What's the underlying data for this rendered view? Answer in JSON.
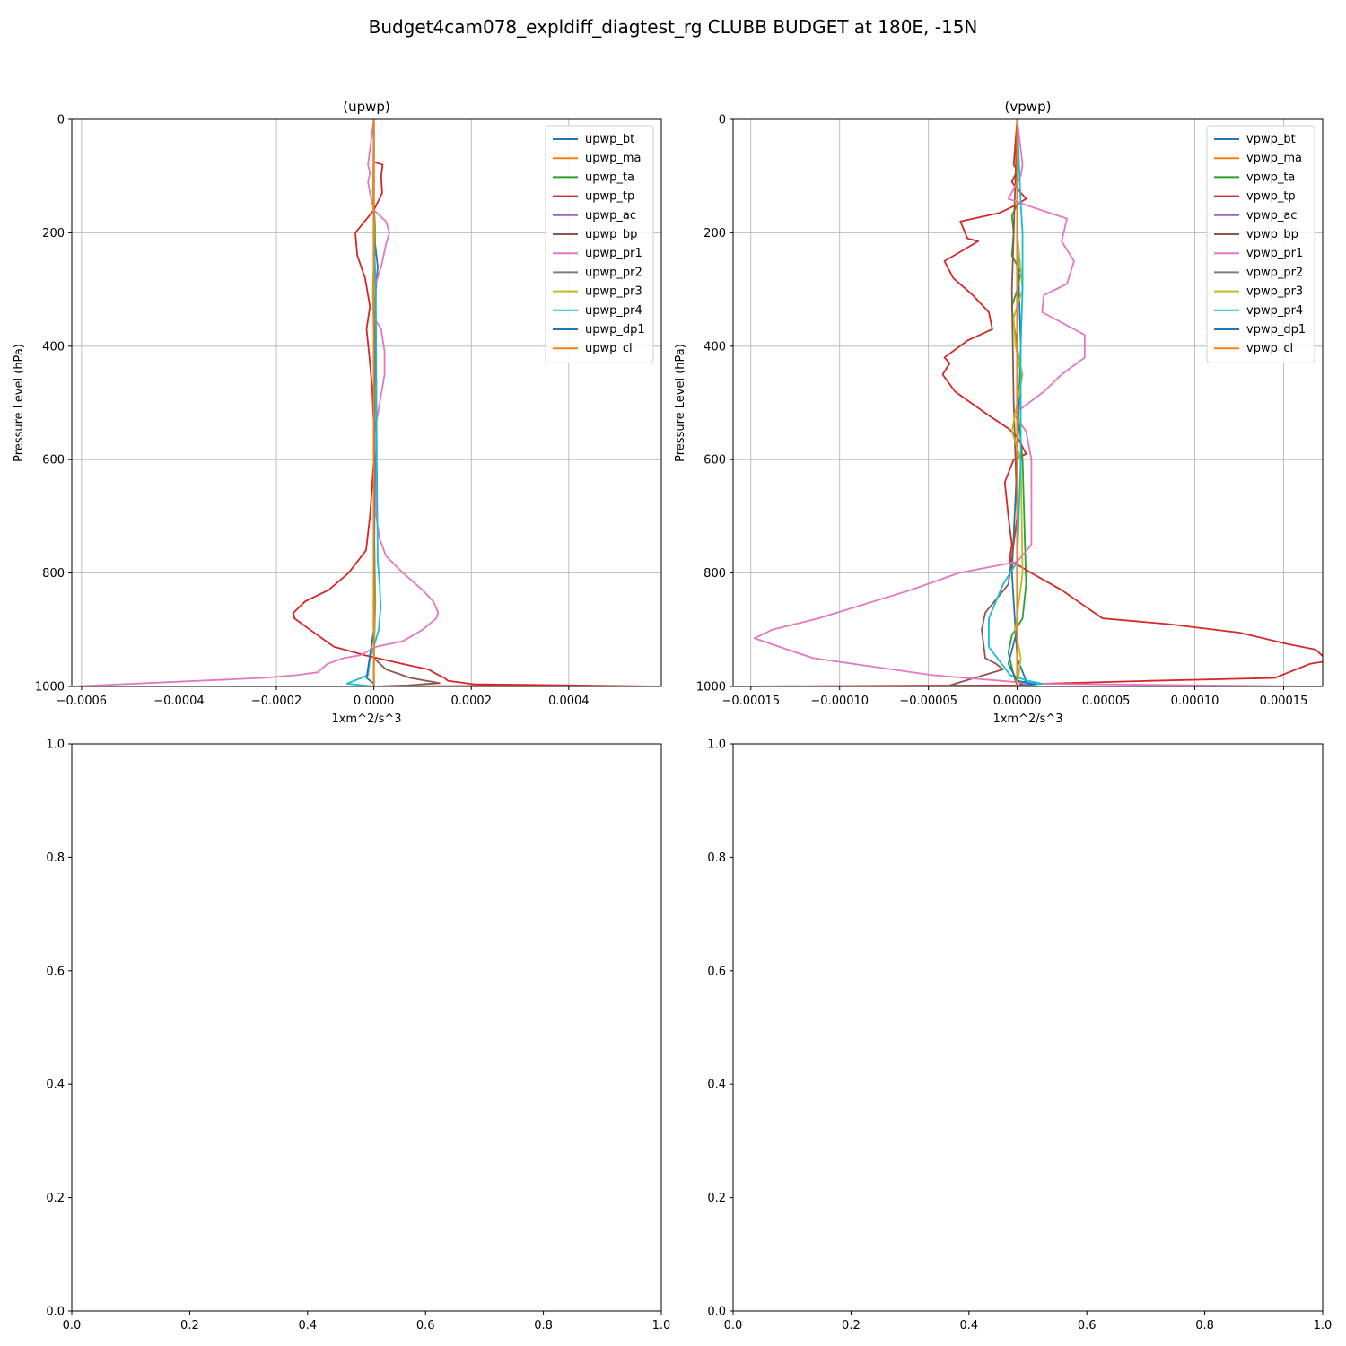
{
  "figure": {
    "title": "Budget4cam078_expldiff_diagtest_rg CLUBB BUDGET at 180E, -15N"
  },
  "chart_data": [
    {
      "type": "line",
      "title": "(upwp)",
      "xlabel": "1xm^2/s^3",
      "ylabel": "Pressure Level (hPa)",
      "xlim": [
        -0.00062,
        0.00059
      ],
      "ylim": [
        1000,
        0
      ],
      "y_inverted": true,
      "grid": true,
      "legend_position": "top-right",
      "xticks": [
        -0.0006,
        -0.0004,
        -0.0002,
        0.0,
        0.0002,
        0.0004
      ],
      "xtick_labels": [
        "−0.0006",
        "−0.0004",
        "−0.0002",
        "0.0000",
        "0.0002",
        "0.0004"
      ],
      "yticks": [
        0,
        200,
        400,
        600,
        800,
        1000
      ],
      "ytick_labels": [
        "0",
        "200",
        "400",
        "600",
        "800",
        "1000"
      ],
      "series": [
        {
          "name": "upwp_bt",
          "color": "#1f77b4",
          "x": [
            0,
            0,
            0,
            8e-06,
            4e-06,
            0,
            0,
            0,
            0,
            0
          ],
          "y": [
            0,
            150,
            200,
            260,
            300,
            600,
            800,
            930,
            980,
            1000
          ]
        },
        {
          "name": "upwp_ma",
          "color": "#ff7f0e",
          "x": [
            0,
            0,
            0,
            0,
            0
          ],
          "y": [
            0,
            300,
            600,
            900,
            1000
          ]
        },
        {
          "name": "upwp_ta",
          "color": "#2ca02c",
          "x": [
            0,
            0,
            3e-06,
            0,
            2e-06,
            0,
            3e-06,
            0,
            0
          ],
          "y": [
            0,
            150,
            200,
            300,
            500,
            700,
            850,
            950,
            1000
          ]
        },
        {
          "name": "upwp_tp",
          "color": "#d62728",
          "x": [
            0,
            0,
            1.8e-05,
            1.5e-05,
            1.7e-05,
            0,
            -3.8e-05,
            -3.4e-05,
            -1.8e-05,
            -8e-06,
            -1.5e-05,
            -9e-06,
            -3e-06,
            0,
            0,
            -3e-06,
            -8e-06,
            -1.6e-05,
            -5.2e-05,
            -9.3e-05,
            -0.000141,
            -0.000165,
            -0.000163,
            -0.000131,
            -8.2e-05,
            -1.8e-05,
            5.8e-05,
            0.000112,
            0.000133,
            0.000145,
            0.000152,
            0.000205,
            0.00059,
            0.0002,
            0
          ],
          "y": [
            0,
            75,
            80,
            100,
            130,
            160,
            200,
            240,
            280,
            330,
            370,
            420,
            480,
            540,
            600,
            640,
            700,
            760,
            800,
            830,
            850,
            870,
            880,
            900,
            930,
            945,
            960,
            970,
            980,
            985,
            990,
            996,
            1000,
            999,
            1000
          ]
        },
        {
          "name": "upwp_ac",
          "color": "#9467bd",
          "x": [
            0,
            0,
            0,
            0,
            0
          ],
          "y": [
            0,
            300,
            600,
            900,
            1000
          ]
        },
        {
          "name": "upwp_bp",
          "color": "#8c564b",
          "x": [
            0,
            0,
            2e-06,
            0,
            0,
            2.5e-05,
            7.5e-05,
            0.000135,
            7e-05,
            0
          ],
          "y": [
            0,
            300,
            500,
            700,
            950,
            970,
            985,
            994,
            998,
            1000
          ]
        },
        {
          "name": "upwp_pr1",
          "color": "#e377c2",
          "x": [
            0,
            -1.2e-05,
            -8e-06,
            -1.2e-05,
            -8e-06,
            0,
            2.5e-05,
            3.2e-05,
            2.5e-05,
            1.5e-05,
            0,
            0,
            1.5e-05,
            2.2e-05,
            2.2e-05,
            1.2e-05,
            0,
            3e-06,
            5e-06,
            5e-06,
            1.2e-05,
            2.5e-05,
            6e-05,
            0.0001,
            0.000122,
            0.000132,
            0.000128,
            0.0001,
            6e-05,
            5e-06,
            -2.8e-05,
            -6.2e-05,
            -9.5e-05,
            -0.000115,
            -0.000158,
            -0.000228,
            -0.00062
          ],
          "y": [
            0,
            80,
            95,
            110,
            130,
            160,
            180,
            200,
            220,
            260,
            300,
            350,
            370,
            410,
            450,
            500,
            560,
            600,
            650,
            700,
            740,
            770,
            800,
            830,
            850,
            870,
            880,
            900,
            920,
            930,
            945,
            950,
            960,
            975,
            980,
            985,
            1000
          ]
        },
        {
          "name": "upwp_pr2",
          "color": "#7f7f7f",
          "x": [
            0,
            0,
            0,
            0,
            0
          ],
          "y": [
            0,
            300,
            600,
            900,
            1000
          ]
        },
        {
          "name": "upwp_pr3",
          "color": "#bcbd22",
          "x": [
            0,
            -2e-06,
            2e-06,
            -2e-06,
            2e-06,
            0,
            2e-06,
            0,
            0
          ],
          "y": [
            0,
            150,
            200,
            300,
            500,
            700,
            850,
            950,
            1000
          ]
        },
        {
          "name": "upwp_pr4",
          "color": "#17becf",
          "x": [
            0,
            0,
            4e-06,
            6e-06,
            8e-06,
            1.2e-05,
            1.4e-05,
            1e-05,
            0,
            -8e-06,
            -1.2e-05,
            -5.5e-05,
            0
          ],
          "y": [
            0,
            200,
            300,
            600,
            780,
            820,
            860,
            900,
            930,
            950,
            980,
            995,
            1000
          ]
        },
        {
          "name": "upwp_dp1",
          "color": "#1f77b4",
          "x": [
            0,
            0,
            2e-06,
            0,
            -1.5e-05,
            0,
            0
          ],
          "y": [
            0,
            300,
            600,
            900,
            985,
            995,
            1000
          ]
        },
        {
          "name": "upwp_cl",
          "color": "#ff7f0e",
          "x": [
            0,
            0,
            0,
            0,
            0
          ],
          "y": [
            0,
            300,
            600,
            900,
            1000
          ]
        }
      ]
    },
    {
      "type": "line",
      "title": "(vpwp)",
      "xlabel": "1xm^2/s^3",
      "ylabel": "Pressure Level (hPa)",
      "xlim": [
        -0.00016,
        0.000172
      ],
      "ylim": [
        1000,
        0
      ],
      "y_inverted": true,
      "grid": true,
      "legend_position": "top-right",
      "xticks": [
        -0.00015,
        -0.0001,
        -5e-05,
        0.0,
        5e-05,
        0.0001,
        0.00015
      ],
      "xtick_labels": [
        "−0.00015",
        "−0.00010",
        "−0.00005",
        "0.00000",
        "0.00005",
        "0.00010",
        "0.00015"
      ],
      "yticks": [
        0,
        200,
        400,
        600,
        800,
        1000
      ],
      "ytick_labels": [
        "0",
        "200",
        "400",
        "600",
        "800",
        "1000"
      ],
      "series": [
        {
          "name": "vpwp_bt",
          "color": "#1f77b4",
          "x": [
            0,
            0,
            2e-06,
            0,
            -3e-06,
            0,
            5e-06,
            0
          ],
          "y": [
            0,
            200,
            400,
            600,
            800,
            950,
            990,
            1000
          ]
        },
        {
          "name": "vpwp_ma",
          "color": "#ff7f0e",
          "x": [
            0,
            0,
            0,
            0,
            0
          ],
          "y": [
            0,
            300,
            600,
            900,
            1000
          ]
        },
        {
          "name": "vpwp_ta",
          "color": "#2ca02c",
          "x": [
            0,
            0,
            0,
            -3e-06,
            -2e-06,
            -3e-06,
            2e-06,
            0,
            -3e-06,
            -2e-06,
            0,
            2e-06,
            0,
            3e-06,
            5e-06,
            3e-06,
            -3e-06,
            -5e-06,
            -2e-06,
            0
          ],
          "y": [
            0,
            100,
            150,
            170,
            200,
            240,
            270,
            300,
            330,
            360,
            400,
            450,
            500,
            600,
            820,
            880,
            910,
            940,
            980,
            1000
          ]
        },
        {
          "name": "vpwp_tp",
          "color": "#d62728",
          "x": [
            0,
            -2e-06,
            0,
            -3e-06,
            -2e-06,
            5e-06,
            0,
            -1e-05,
            -3.2e-05,
            -2.8e-05,
            -2.2e-05,
            -4.1e-05,
            -3.6e-05,
            -2.5e-05,
            -1.6e-05,
            -1.4e-05,
            -2.8e-05,
            -4.1e-05,
            -3.8e-05,
            -4.2e-05,
            -3.5e-05,
            -1.7e-05,
            -5e-06,
            0,
            5e-06,
            -2e-06,
            -7e-06,
            -5e-06,
            -3e-06,
            -4e-06,
            -4e-06,
            0,
            8e-06,
            2.5e-05,
            4.8e-05,
            8.5e-05,
            0.000125,
            0.000152,
            0.000168,
            0.000175,
            0.000165,
            0.000145,
            7.5e-05,
            1.5e-05,
            0,
            -0.00016,
            0
          ],
          "y": [
            0,
            80,
            90,
            110,
            115,
            140,
            150,
            165,
            180,
            210,
            215,
            250,
            280,
            310,
            340,
            370,
            390,
            420,
            430,
            450,
            480,
            520,
            545,
            560,
            590,
            600,
            640,
            700,
            750,
            770,
            780,
            785,
            800,
            830,
            880,
            890,
            905,
            925,
            935,
            955,
            960,
            985,
            990,
            995,
            998,
            1000,
            998
          ]
        },
        {
          "name": "vpwp_ac",
          "color": "#9467bd",
          "x": [
            0,
            0,
            0,
            0,
            0
          ],
          "y": [
            0,
            300,
            600,
            900,
            1000
          ]
        },
        {
          "name": "vpwp_bp",
          "color": "#8c564b",
          "x": [
            0,
            -3e-06,
            -2e-06,
            0,
            -5e-06,
            -1.8e-05,
            -2e-05,
            -1.8e-05,
            -1.2e-05,
            -8e-06,
            -3.8e-05,
            0
          ],
          "y": [
            0,
            300,
            500,
            700,
            820,
            870,
            900,
            950,
            960,
            970,
            998,
            1000
          ]
        },
        {
          "name": "vpwp_pr1",
          "color": "#e377c2",
          "x": [
            0,
            3e-06,
            2e-06,
            -5e-06,
            4e-06,
            2.8e-05,
            2.5e-05,
            3.2e-05,
            2.8e-05,
            1.5e-05,
            1.4e-05,
            3.8e-05,
            3.8e-05,
            2.5e-05,
            1.5e-05,
            -2e-06,
            5e-06,
            8e-06,
            8e-06,
            8e-06,
            0,
            -3.3e-05,
            -6e-05,
            -0.000112,
            -0.000138,
            -0.000148,
            -0.000134,
            -0.000115,
            -4.8e-05,
            1e-05,
            0.000165
          ],
          "y": [
            0,
            80,
            100,
            140,
            150,
            175,
            215,
            250,
            290,
            310,
            340,
            380,
            420,
            450,
            480,
            520,
            550,
            600,
            650,
            750,
            780,
            800,
            830,
            880,
            900,
            915,
            930,
            950,
            980,
            995,
            1000
          ]
        },
        {
          "name": "vpwp_pr2",
          "color": "#7f7f7f",
          "x": [
            0,
            0,
            0,
            0,
            0
          ],
          "y": [
            0,
            300,
            600,
            900,
            1000
          ]
        },
        {
          "name": "vpwp_pr3",
          "color": "#bcbd22",
          "x": [
            0,
            0,
            3e-06,
            -2e-06,
            -1e-06,
            3e-06,
            -3e-06,
            2e-06,
            3e-06,
            -1e-06,
            2e-06,
            0
          ],
          "y": [
            0,
            200,
            300,
            350,
            400,
            450,
            550,
            600,
            800,
            900,
            950,
            1000
          ]
        },
        {
          "name": "vpwp_pr4",
          "color": "#17becf",
          "x": [
            0,
            2e-06,
            3e-06,
            3e-06,
            2e-06,
            2e-06,
            2e-06,
            0,
            -8e-06,
            -1.6e-05,
            -1.6e-05,
            -4e-06,
            6e-06,
            1.4e-05,
            0
          ],
          "y": [
            0,
            150,
            200,
            300,
            400,
            500,
            600,
            780,
            820,
            880,
            930,
            980,
            990,
            995,
            1000
          ]
        },
        {
          "name": "vpwp_dp1",
          "color": "#1f77b4",
          "x": [
            0,
            0,
            0,
            0,
            -5e-06,
            0,
            1e-05,
            0
          ],
          "y": [
            0,
            300,
            600,
            900,
            960,
            990,
            996,
            1000
          ]
        },
        {
          "name": "vpwp_cl",
          "color": "#ff7f0e",
          "x": [
            0,
            0,
            0,
            0,
            0
          ],
          "y": [
            0,
            300,
            600,
            900,
            1000
          ]
        }
      ]
    },
    {
      "type": "line",
      "title": "",
      "xlim": [
        0,
        1
      ],
      "ylim": [
        0,
        1
      ],
      "y_inverted": false,
      "grid": false,
      "xticks": [
        0,
        0.2,
        0.4,
        0.6,
        0.8,
        1.0
      ],
      "xtick_labels": [
        "0.0",
        "0.2",
        "0.4",
        "0.6",
        "0.8",
        "1.0"
      ],
      "yticks": [
        0,
        0.2,
        0.4,
        0.6,
        0.8,
        1.0
      ],
      "ytick_labels": [
        "0.0",
        "0.2",
        "0.4",
        "0.6",
        "0.8",
        "1.0"
      ],
      "series": []
    },
    {
      "type": "line",
      "title": "",
      "xlim": [
        0,
        1
      ],
      "ylim": [
        0,
        1
      ],
      "y_inverted": false,
      "grid": false,
      "xticks": [
        0,
        0.2,
        0.4,
        0.6,
        0.8,
        1.0
      ],
      "xtick_labels": [
        "0.0",
        "0.2",
        "0.4",
        "0.6",
        "0.8",
        "1.0"
      ],
      "yticks": [
        0,
        0.2,
        0.4,
        0.6,
        0.8,
        1.0
      ],
      "ytick_labels": [
        "0.0",
        "0.2",
        "0.4",
        "0.6",
        "0.8",
        "1.0"
      ],
      "series": []
    }
  ]
}
